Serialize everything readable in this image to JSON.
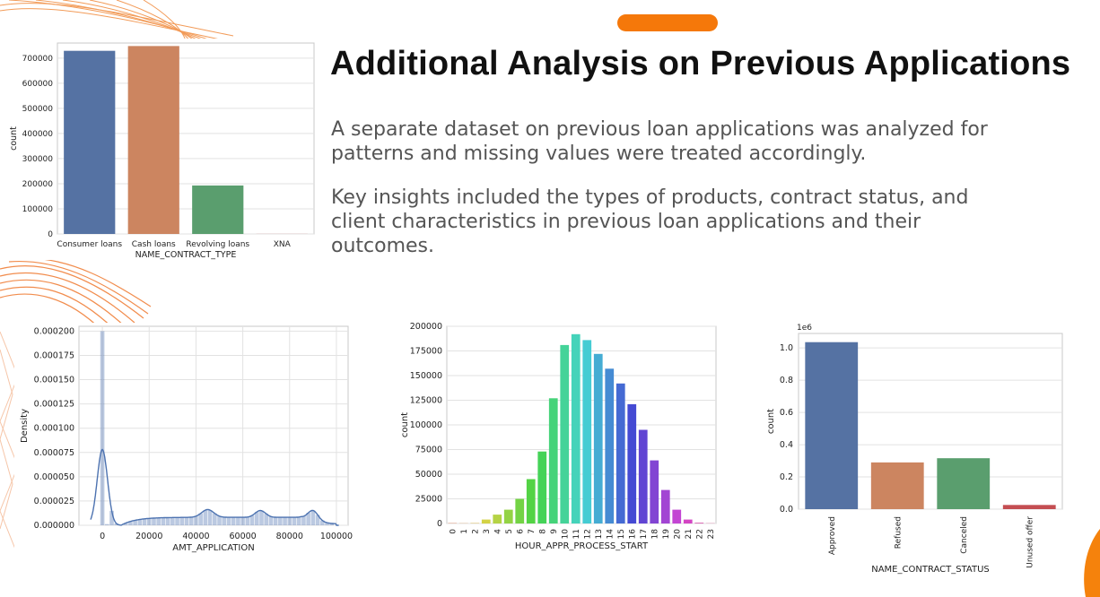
{
  "slide": {
    "title": "Additional Analysis on Previous Applications",
    "paragraphs": [
      "A separate dataset on previous loan applications was analyzed for patterns and missing values were treated accordingly.",
      "Key insights included the types of products, contract status, and client characteristics in previous loan applications and their outcomes."
    ],
    "accent_color": "#f5780a"
  },
  "chart_data": [
    {
      "type": "bar",
      "categories": [
        "Consumer loans",
        "Cash loans",
        "Revolving loans",
        "XNA"
      ],
      "values": [
        729000,
        748000,
        193000,
        300
      ],
      "colors": [
        "#5572a3",
        "#cc8560",
        "#5a9e6e",
        "#c44e52"
      ],
      "xlabel": "NAME_CONTRACT_TYPE",
      "ylabel": "count",
      "ylim": [
        0,
        760000
      ],
      "yticks": [
        0,
        100000,
        200000,
        300000,
        400000,
        500000,
        600000,
        700000
      ],
      "grid": true
    },
    {
      "type": "bar",
      "subtype": "histogram-with-density",
      "x": [
        0,
        45000,
        67500,
        90000
      ],
      "density_peaks": [
        7.8e-05,
        1.55e-05,
        1.25e-05,
        1.7e-05
      ],
      "histogram_peak": {
        "x": 0,
        "y": 0.0002
      },
      "xlabel": "AMT_APPLICATION",
      "ylabel": "Density",
      "xlim": [
        -10000,
        105000
      ],
      "ylim": [
        0,
        0.000205
      ],
      "xticks": [
        0,
        20000,
        40000,
        60000,
        80000,
        100000
      ],
      "yticks": [
        "0.000000",
        "0.000025",
        "0.000050",
        "0.000075",
        "0.000100",
        "0.000125",
        "0.000150",
        "0.000175",
        "0.000200"
      ],
      "color": "#4c72b0",
      "grid": true
    },
    {
      "type": "bar",
      "categories": [
        "0",
        "1",
        "2",
        "3",
        "4",
        "5",
        "6",
        "7",
        "8",
        "9",
        "10",
        "11",
        "12",
        "13",
        "14",
        "15",
        "16",
        "17",
        "18",
        "19",
        "20",
        "21",
        "22",
        "23"
      ],
      "values": [
        300,
        200,
        400,
        4000,
        9000,
        14000,
        25000,
        45000,
        73000,
        127000,
        181000,
        192000,
        186000,
        172000,
        157000,
        142000,
        121000,
        95000,
        64000,
        34000,
        14000,
        4000,
        700,
        200
      ],
      "xlabel": "HOUR_APPR_PROCESS_START",
      "ylabel": "count",
      "ylim": [
        0,
        200000
      ],
      "yticks": [
        0,
        25000,
        50000,
        75000,
        100000,
        125000,
        150000,
        175000,
        200000
      ],
      "palette": "husl",
      "grid": true
    },
    {
      "type": "bar",
      "categories": [
        "Approved",
        "Refused",
        "Canceled",
        "Unused offer"
      ],
      "values": [
        1.036,
        0.29,
        0.316,
        0.026
      ],
      "colors": [
        "#5572a3",
        "#cc8560",
        "#5a9e6e",
        "#c44e52"
      ],
      "xlabel": "NAME_CONTRACT_STATUS",
      "ylabel": "count",
      "offset_label": "1e6",
      "ylim": [
        0,
        1.09
      ],
      "yticks": [
        "0.0",
        "0.2",
        "0.4",
        "0.6",
        "0.8",
        "1.0"
      ],
      "grid": true
    }
  ]
}
